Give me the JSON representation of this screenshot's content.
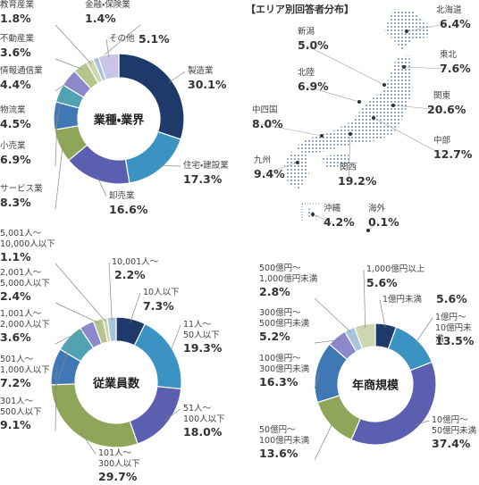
{
  "chart_data": [
    {
      "type": "pie",
      "donut": true,
      "title": "業種・業界",
      "categories": [
        "製造業",
        "住宅・建設業",
        "卸売業",
        "サービス業",
        "小売業",
        "物流業",
        "情報通信業",
        "不動産業",
        "教育産業",
        "金融・保険業",
        "その他"
      ],
      "values": [
        30.1,
        17.3,
        16.6,
        8.3,
        6.9,
        4.5,
        4.4,
        3.6,
        1.8,
        1.4,
        5.1
      ],
      "value_labels": [
        "30.1%",
        "17.3%",
        "16.6%",
        "8.3%",
        "6.9%",
        "4.5%",
        "4.4%",
        "3.6%",
        "1.8%",
        "1.4%",
        "5.1%"
      ],
      "colors": [
        "#1d3a6b",
        "#3a93c2",
        "#5a5fb0",
        "#8ea55a",
        "#3f78b5",
        "#4fa3b3",
        "#8c88c9",
        "#b5c48c",
        "#cdd6ae",
        "#a8c6da",
        "#c9c5e6"
      ]
    },
    {
      "type": "pie",
      "donut": true,
      "title": "従業員数",
      "categories": [
        "10人以下",
        "11人～\n50人以下",
        "51人～\n100人以下",
        "101人～\n300人以下",
        "301人～\n500人以下",
        "501人～\n1,000人以下",
        "1,001人～\n2,000人以下",
        "2,001人～\n5,000人以下",
        "5,001人～\n10,000人以下",
        "10,001人～"
      ],
      "values": [
        7.3,
        19.3,
        18.0,
        29.7,
        9.1,
        7.2,
        3.6,
        2.4,
        1.1,
        2.2
      ],
      "value_labels": [
        "7.3%",
        "19.3%",
        "18.0%",
        "29.7%",
        "9.1%",
        "7.2%",
        "3.6%",
        "2.4%",
        "1.1%",
        "2.2%"
      ],
      "colors": [
        "#1d3a6b",
        "#3a93c2",
        "#5a5fb0",
        "#8ea55a",
        "#3f78b5",
        "#4fa3b3",
        "#8c88c9",
        "#b5c48c",
        "#cdd6ae",
        "#a8c6da"
      ]
    },
    {
      "type": "pie",
      "donut": true,
      "title": "年商規模",
      "categories": [
        "1億円未満",
        "1億円～\n10億円未満",
        "10億円～\n50億円未満",
        "50億円～\n100億円未満",
        "100億円～\n300億円未満",
        "300億円～\n500億円未満",
        "500億円～\n1,000億円未満",
        "1,000億円以上"
      ],
      "values": [
        5.6,
        13.5,
        37.4,
        13.6,
        16.3,
        5.2,
        2.8,
        5.6
      ],
      "value_labels": [
        "5.6%",
        "13.5%",
        "37.4%",
        "13.6%",
        "16.3%",
        "5.2%",
        "2.8%",
        "5.6%"
      ],
      "colors": [
        "#1d3a6b",
        "#3a93c2",
        "#5a5fb0",
        "#8ea55a",
        "#3f78b5",
        "#8c88c9",
        "#a8c6da",
        "#cdd6ae"
      ]
    },
    {
      "type": "map",
      "title": "【エリア別回答者分布】",
      "color": "#6e8fc0",
      "categories": [
        "北海道",
        "東北",
        "関東",
        "中部",
        "関西",
        "中四国",
        "九州",
        "北陸",
        "新潟",
        "沖縄",
        "海外"
      ],
      "values": [
        6.4,
        7.6,
        20.6,
        12.7,
        19.2,
        8.0,
        9.4,
        6.9,
        5.0,
        4.2,
        0.1
      ],
      "value_labels": [
        "6.4%",
        "7.6%",
        "20.6%",
        "12.7%",
        "19.2%",
        "8.0%",
        "9.4%",
        "6.9%",
        "5.0%",
        "4.2%",
        "0.1%"
      ]
    }
  ]
}
